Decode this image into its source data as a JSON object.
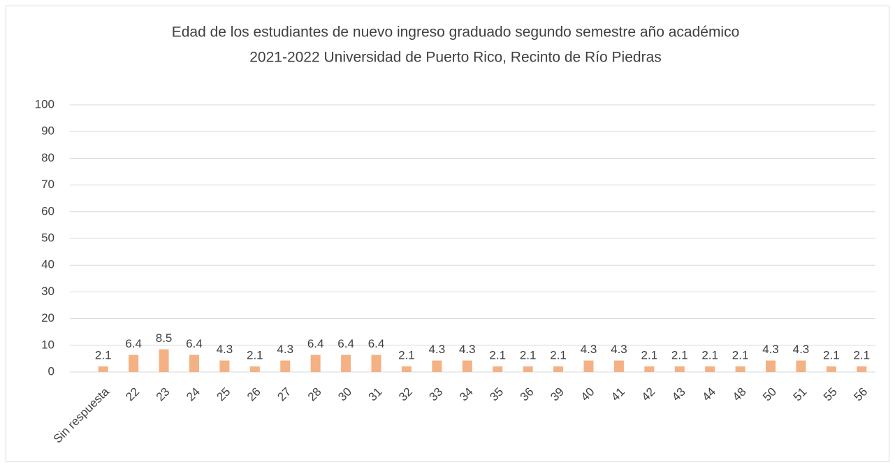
{
  "chart_data": {
    "type": "bar",
    "title": [
      "Edad de los estudiantes de nuevo ingreso graduado segundo semestre año académico",
      "2021-2022 Universidad de Puerto Rico, Recinto de Río Piedras"
    ],
    "categories": [
      "Sin respuesta",
      "22",
      "23",
      "24",
      "25",
      "26",
      "27",
      "28",
      "30",
      "31",
      "32",
      "33",
      "34",
      "35",
      "36",
      "39",
      "40",
      "41",
      "42",
      "43",
      "44",
      "48",
      "50",
      "51",
      "55",
      "56"
    ],
    "values": [
      2.1,
      6.4,
      8.5,
      6.4,
      4.3,
      2.1,
      4.3,
      6.4,
      6.4,
      6.4,
      2.1,
      4.3,
      4.3,
      2.1,
      2.1,
      2.1,
      4.3,
      4.3,
      2.1,
      2.1,
      2.1,
      2.1,
      4.3,
      4.3,
      2.1,
      2.1
    ],
    "color": "#f4b183",
    "ylim": [
      0,
      100
    ],
    "yticks": [
      0,
      10,
      20,
      30,
      40,
      50,
      60,
      70,
      80,
      90,
      100
    ],
    "grid": true
  }
}
